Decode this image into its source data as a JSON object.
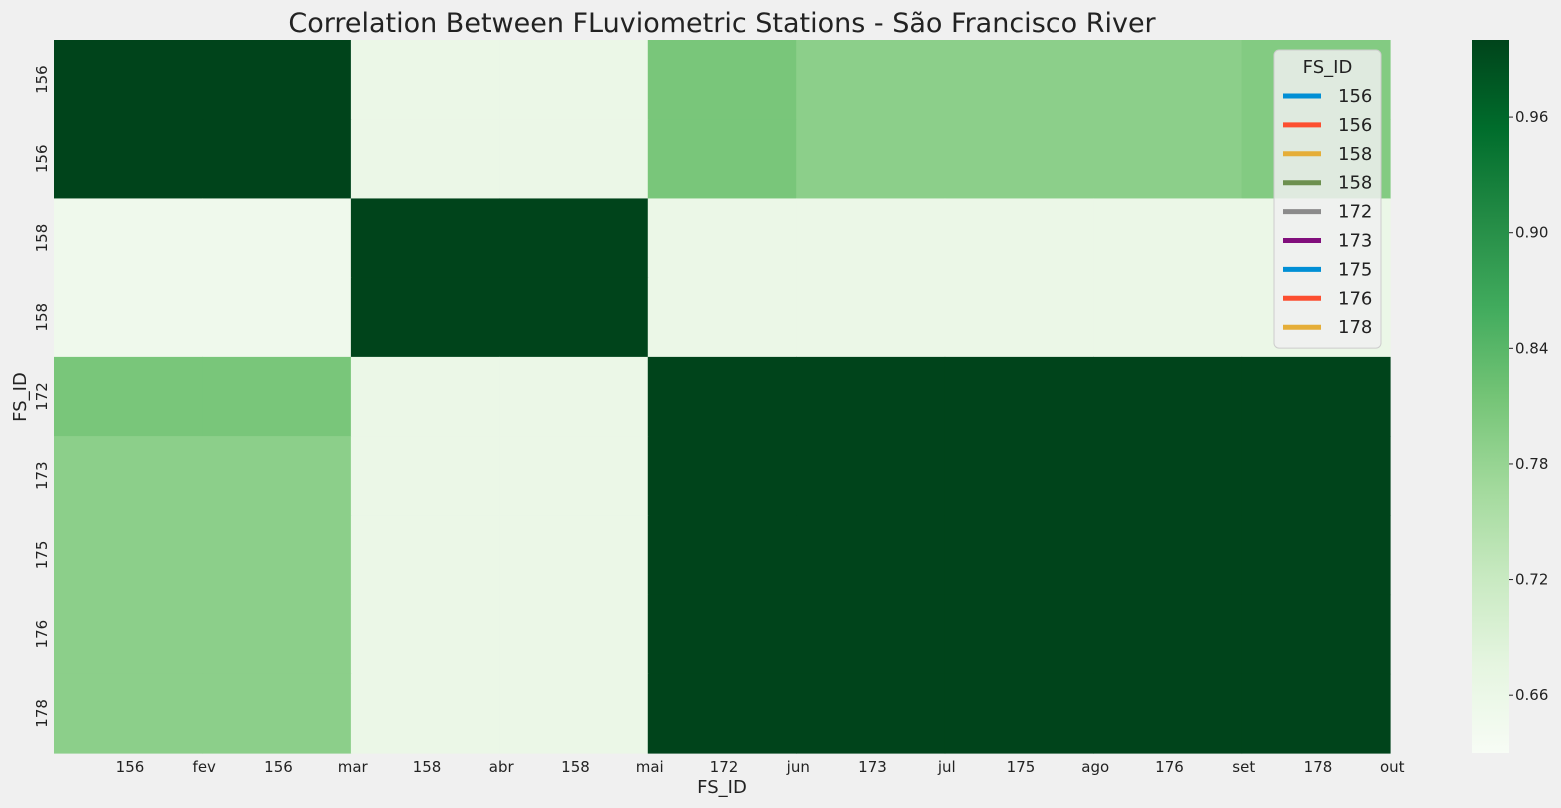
{
  "chart_data": {
    "type": "heatmap",
    "title": "Correlation Between FLuviometric Stations - São Francisco River",
    "xlabel": "FS_ID",
    "ylabel": "FS_ID",
    "row_labels": [
      "156",
      "156",
      "158",
      "158",
      "172",
      "173",
      "175",
      "176",
      "178"
    ],
    "x_tick_labels": [
      "156",
      "fev",
      "156",
      "mar",
      "158",
      "abr",
      "158",
      "mai",
      "172",
      "jun",
      "173",
      "jul",
      "175",
      "ago",
      "176",
      "set",
      "178",
      "out"
    ],
    "x_group_labels": [
      "156",
      "156",
      "158",
      "158",
      "172",
      "173",
      "175",
      "176",
      "178"
    ],
    "values": [
      [
        1.0,
        1.0,
        0.66,
        0.66,
        0.81,
        0.79,
        0.79,
        0.79,
        0.8
      ],
      [
        1.0,
        1.0,
        0.66,
        0.66,
        0.81,
        0.79,
        0.79,
        0.79,
        0.8
      ],
      [
        0.65,
        0.65,
        1.0,
        1.0,
        0.66,
        0.66,
        0.66,
        0.66,
        0.66
      ],
      [
        0.65,
        0.65,
        1.0,
        1.0,
        0.66,
        0.66,
        0.66,
        0.66,
        0.66
      ],
      [
        0.81,
        0.81,
        0.66,
        0.66,
        1.0,
        1.0,
        1.0,
        1.0,
        1.0
      ],
      [
        0.79,
        0.79,
        0.66,
        0.66,
        1.0,
        1.0,
        1.0,
        1.0,
        1.0
      ],
      [
        0.79,
        0.79,
        0.66,
        0.66,
        1.0,
        1.0,
        1.0,
        1.0,
        1.0
      ],
      [
        0.79,
        0.79,
        0.66,
        0.66,
        1.0,
        1.0,
        1.0,
        1.0,
        1.0
      ],
      [
        0.79,
        0.79,
        0.66,
        0.66,
        1.0,
        1.0,
        1.0,
        1.0,
        1.0
      ]
    ],
    "color_range": [
      0.63,
      1.0
    ],
    "colorbar_ticks": [
      "0.66",
      "0.72",
      "0.78",
      "0.84",
      "0.90",
      "0.96"
    ],
    "colormap": [
      "#f7fcf5",
      "#e5f5e0",
      "#c7e9c0",
      "#a1d99b",
      "#74c476",
      "#41ab5d",
      "#238b45",
      "#006d2c",
      "#00441b"
    ],
    "legend": {
      "title": "FS_ID",
      "placement": "top-right",
      "entries": [
        {
          "label": "156",
          "color": "#008fd5"
        },
        {
          "label": "156",
          "color": "#fc4f30"
        },
        {
          "label": "158",
          "color": "#e5ae38"
        },
        {
          "label": "158",
          "color": "#6d904f"
        },
        {
          "label": "172",
          "color": "#8b8b8b"
        },
        {
          "label": "173",
          "color": "#810f7c"
        },
        {
          "label": "175",
          "color": "#008fd5"
        },
        {
          "label": "176",
          "color": "#fc4f30"
        },
        {
          "label": "178",
          "color": "#e5ae38"
        }
      ]
    }
  }
}
